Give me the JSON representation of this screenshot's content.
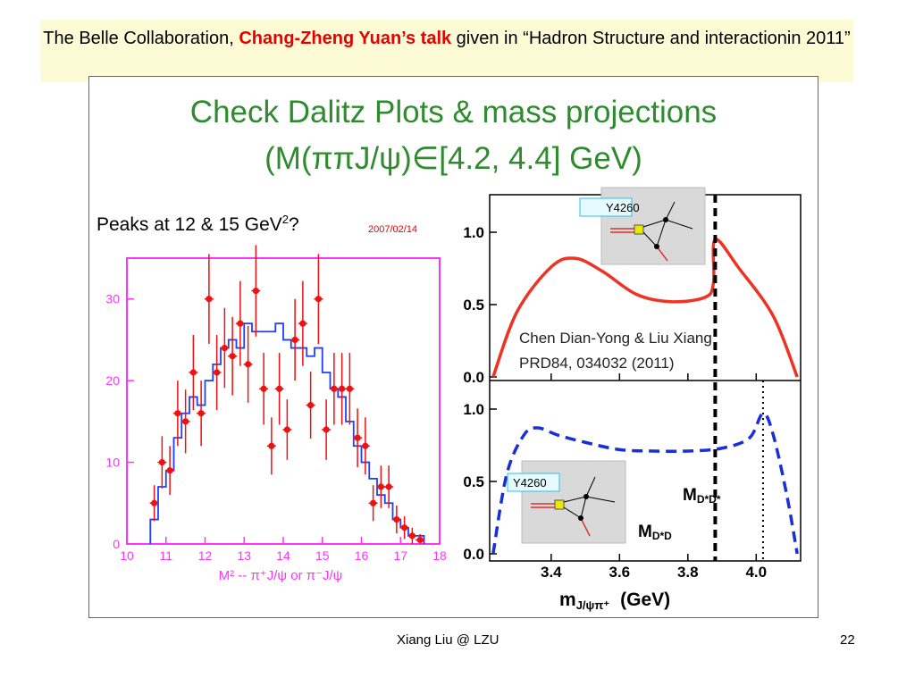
{
  "header": {
    "prefix": "The Belle Collaboration, ",
    "talk": "Chang-Zheng Yuan’s talk",
    "suffix": " given in “Hadron Structure and interactionin 2011”"
  },
  "slide": {
    "title_line1": "Check Dalitz Plots & mass projections",
    "title_line2": "(M(ππJ/ψ)∈[4.2, 4.4] GeV)"
  },
  "left_plot": {
    "annotation": "Peaks at 12 & 15 GeV",
    "annotation_sup": "2",
    "annotation_end": "?",
    "date": "2007/02/14",
    "xlabel": "M² -- π⁺J/ψ or π⁻J/ψ",
    "colors": {
      "frame": "#ff33ff",
      "histogram": "#1f3fff",
      "points": "#ee1111"
    }
  },
  "right_plot": {
    "citation_line1": "Chen Dian-Yong & Liu Xiang",
    "citation_line2": "PRD84, 034032 (2011)",
    "inset_label": "Y4260",
    "label_mdsd": "M",
    "label_mdsd_sub": "D*D*",
    "label_mdd": "M",
    "label_mdd_sub": "D*D",
    "xlabel": "m",
    "xlabel_sub": "J/ψπ⁺",
    "xlabel_unit": "(GeV)"
  },
  "chart_data": [
    {
      "type": "scatter",
      "title": "Peaks at 12 & 15 GeV²?",
      "xlabel": "M² -- π⁺J/ψ or π⁻J/ψ",
      "ylabel": "",
      "xlim": [
        10,
        18
      ],
      "ylim": [
        0,
        35
      ],
      "xticks": [
        10,
        11,
        12,
        13,
        14,
        15,
        16,
        17,
        18
      ],
      "yticks": [
        0,
        10,
        20,
        30
      ],
      "series": [
        {
          "kind": "points_with_errors",
          "x": [
            10.7,
            10.9,
            11.1,
            11.3,
            11.5,
            11.7,
            11.9,
            12.1,
            12.3,
            12.5,
            12.7,
            12.9,
            13.1,
            13.3,
            13.5,
            13.7,
            13.9,
            14.1,
            14.3,
            14.5,
            14.7,
            14.9,
            15.1,
            15.3,
            15.5,
            15.7,
            15.9,
            16.1,
            16.3,
            16.5,
            16.7,
            16.9,
            17.1,
            17.3,
            17.5
          ],
          "y": [
            5,
            10,
            9,
            16,
            15,
            21,
            16,
            30,
            21,
            24,
            23,
            27,
            22,
            31,
            19,
            12,
            19,
            14,
            25,
            27,
            17,
            30,
            14,
            19,
            19,
            19,
            13,
            12,
            5,
            7,
            7,
            3,
            2,
            1,
            0.5
          ],
          "yerr": [
            2.2,
            3.2,
            3,
            4,
            3.9,
            4.6,
            4,
            5.5,
            4.6,
            4.9,
            4.8,
            5.2,
            4.7,
            5.6,
            4.4,
            3.5,
            4.4,
            3.7,
            5,
            5.2,
            4.1,
            5.5,
            3.7,
            4.4,
            4.4,
            4.4,
            3.6,
            3.5,
            2.2,
            2.6,
            2.6,
            1.7,
            1.4,
            1,
            0.7
          ]
        },
        {
          "kind": "step_histogram",
          "x": [
            10.7,
            10.9,
            11.1,
            11.3,
            11.5,
            11.7,
            11.9,
            12.1,
            12.3,
            12.5,
            12.7,
            12.9,
            13.1,
            13.3,
            13.5,
            13.7,
            13.9,
            14.1,
            14.3,
            14.5,
            14.7,
            14.9,
            15.1,
            15.3,
            15.5,
            15.7,
            15.9,
            16.1,
            16.3,
            16.5,
            16.7,
            16.9,
            17.1,
            17.3,
            17.5
          ],
          "y": [
            3,
            7,
            9,
            13,
            16,
            18,
            17,
            20,
            22,
            24,
            25,
            24,
            27,
            26,
            26,
            26,
            27,
            25,
            24,
            24,
            23,
            24,
            21,
            19,
            18,
            15,
            12,
            10,
            8,
            6,
            5,
            3,
            2,
            1,
            1
          ]
        }
      ]
    },
    {
      "type": "line",
      "panel": "upper",
      "xlim": [
        3.22,
        4.13
      ],
      "ylim": [
        0,
        1.2
      ],
      "yticks": [
        0.0,
        0.5,
        1.0
      ],
      "series": [
        {
          "name": "",
          "style": "solid",
          "color": "#ee3322",
          "x": [
            3.23,
            3.3,
            3.4,
            3.47,
            3.55,
            3.65,
            3.75,
            3.85,
            3.875,
            3.88,
            3.95,
            4.05,
            4.12
          ],
          "y": [
            0.0,
            0.45,
            0.76,
            0.82,
            0.73,
            0.57,
            0.52,
            0.55,
            0.65,
            0.95,
            0.75,
            0.42,
            0.0
          ]
        }
      ],
      "vlines": [
        {
          "x": 3.88,
          "style": "dashed-thick"
        }
      ]
    },
    {
      "type": "line",
      "panel": "lower",
      "xlim": [
        3.22,
        4.13
      ],
      "ylim": [
        0,
        1.2
      ],
      "yticks": [
        0.0,
        0.5,
        1.0
      ],
      "xticks": [
        3.4,
        3.6,
        3.8,
        4.0
      ],
      "xlabel": "m_{J/ψπ⁺} (GeV)",
      "series": [
        {
          "name": "",
          "style": "dashed",
          "color": "#1a2fd6",
          "x": [
            3.23,
            3.27,
            3.32,
            3.36,
            3.42,
            3.5,
            3.6,
            3.7,
            3.8,
            3.9,
            3.98,
            4.02,
            4.05,
            4.09,
            4.12
          ],
          "y": [
            0.0,
            0.55,
            0.82,
            0.87,
            0.82,
            0.77,
            0.72,
            0.71,
            0.71,
            0.73,
            0.8,
            0.97,
            0.82,
            0.4,
            0.0
          ]
        }
      ],
      "vlines": [
        {
          "x": 3.88,
          "style": "dashed-thick"
        },
        {
          "x": 4.02,
          "style": "dotted"
        }
      ]
    }
  ],
  "footer": {
    "author": "Xiang Liu @ LZU",
    "page": "22"
  }
}
